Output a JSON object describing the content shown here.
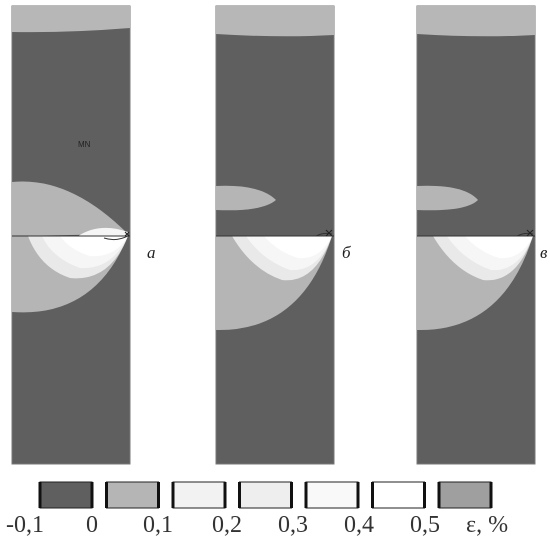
{
  "panels": [
    {
      "id": "a",
      "label": "а",
      "marker": "MN"
    },
    {
      "id": "b",
      "label": "б"
    },
    {
      "id": "v",
      "label": "в"
    }
  ],
  "legend": {
    "colors": [
      "#5f5f5f",
      "#b5b5b5",
      "#f2f2f2",
      "#eeeeee",
      "#f9f9f9",
      "#ffffff",
      "#9f9f9f"
    ],
    "ticks": [
      "-0,1",
      "0",
      "0,1",
      "0,2",
      "0,3",
      "0,4",
      "0,5"
    ],
    "unit": "ε, %"
  }
}
